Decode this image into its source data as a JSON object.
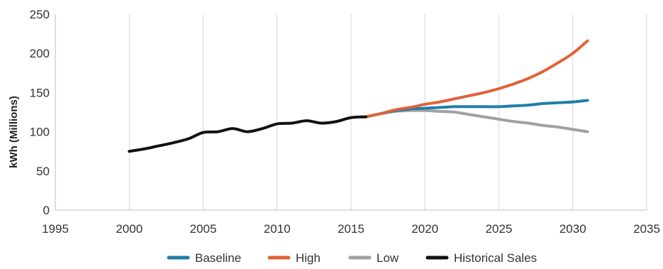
{
  "chart_data": {
    "type": "line",
    "title": "",
    "xlabel": "",
    "ylabel": "kWh (Millions)",
    "xlim": [
      1995,
      2035
    ],
    "ylim": [
      0,
      250
    ],
    "xticks": [
      1995,
      2000,
      2005,
      2010,
      2015,
      2020,
      2025,
      2030,
      2035
    ],
    "yticks": [
      0,
      50,
      100,
      150,
      200,
      250
    ],
    "grid": {
      "vertical": true,
      "horizontal": false
    },
    "legend_position": "bottom",
    "series": [
      {
        "name": "Baseline",
        "color": "#1f7fa8",
        "points": [
          [
            2016,
            119
          ],
          [
            2017,
            123
          ],
          [
            2018,
            127
          ],
          [
            2019,
            129
          ],
          [
            2020,
            130
          ],
          [
            2021,
            131
          ],
          [
            2022,
            132
          ],
          [
            2023,
            132
          ],
          [
            2024,
            132
          ],
          [
            2025,
            132
          ],
          [
            2026,
            133
          ],
          [
            2027,
            134
          ],
          [
            2028,
            136
          ],
          [
            2029,
            137
          ],
          [
            2030,
            138
          ],
          [
            2031,
            140
          ]
        ]
      },
      {
        "name": "High",
        "color": "#e0623a",
        "points": [
          [
            2016,
            119
          ],
          [
            2017,
            123
          ],
          [
            2018,
            128
          ],
          [
            2019,
            131
          ],
          [
            2020,
            135
          ],
          [
            2021,
            138
          ],
          [
            2022,
            142
          ],
          [
            2023,
            146
          ],
          [
            2024,
            150
          ],
          [
            2025,
            155
          ],
          [
            2026,
            161
          ],
          [
            2027,
            168
          ],
          [
            2028,
            177
          ],
          [
            2029,
            188
          ],
          [
            2030,
            200
          ],
          [
            2031,
            216
          ]
        ]
      },
      {
        "name": "Low",
        "color": "#a0a0a0",
        "points": [
          [
            2016,
            119
          ],
          [
            2017,
            123
          ],
          [
            2018,
            126
          ],
          [
            2019,
            127
          ],
          [
            2020,
            127
          ],
          [
            2021,
            126
          ],
          [
            2022,
            125
          ],
          [
            2023,
            122
          ],
          [
            2024,
            119
          ],
          [
            2025,
            116
          ],
          [
            2026,
            113
          ],
          [
            2027,
            111
          ],
          [
            2028,
            108
          ],
          [
            2029,
            106
          ],
          [
            2030,
            103
          ],
          [
            2031,
            100
          ]
        ]
      },
      {
        "name": "Historical Sales",
        "color": "#111111",
        "points": [
          [
            2000,
            75
          ],
          [
            2001,
            78
          ],
          [
            2002,
            82
          ],
          [
            2003,
            86
          ],
          [
            2004,
            91
          ],
          [
            2005,
            99
          ],
          [
            2006,
            100
          ],
          [
            2007,
            104
          ],
          [
            2008,
            100
          ],
          [
            2009,
            104
          ],
          [
            2010,
            110
          ],
          [
            2011,
            111
          ],
          [
            2012,
            114
          ],
          [
            2013,
            111
          ],
          [
            2014,
            113
          ],
          [
            2015,
            118
          ],
          [
            2016,
            119
          ]
        ]
      }
    ]
  }
}
